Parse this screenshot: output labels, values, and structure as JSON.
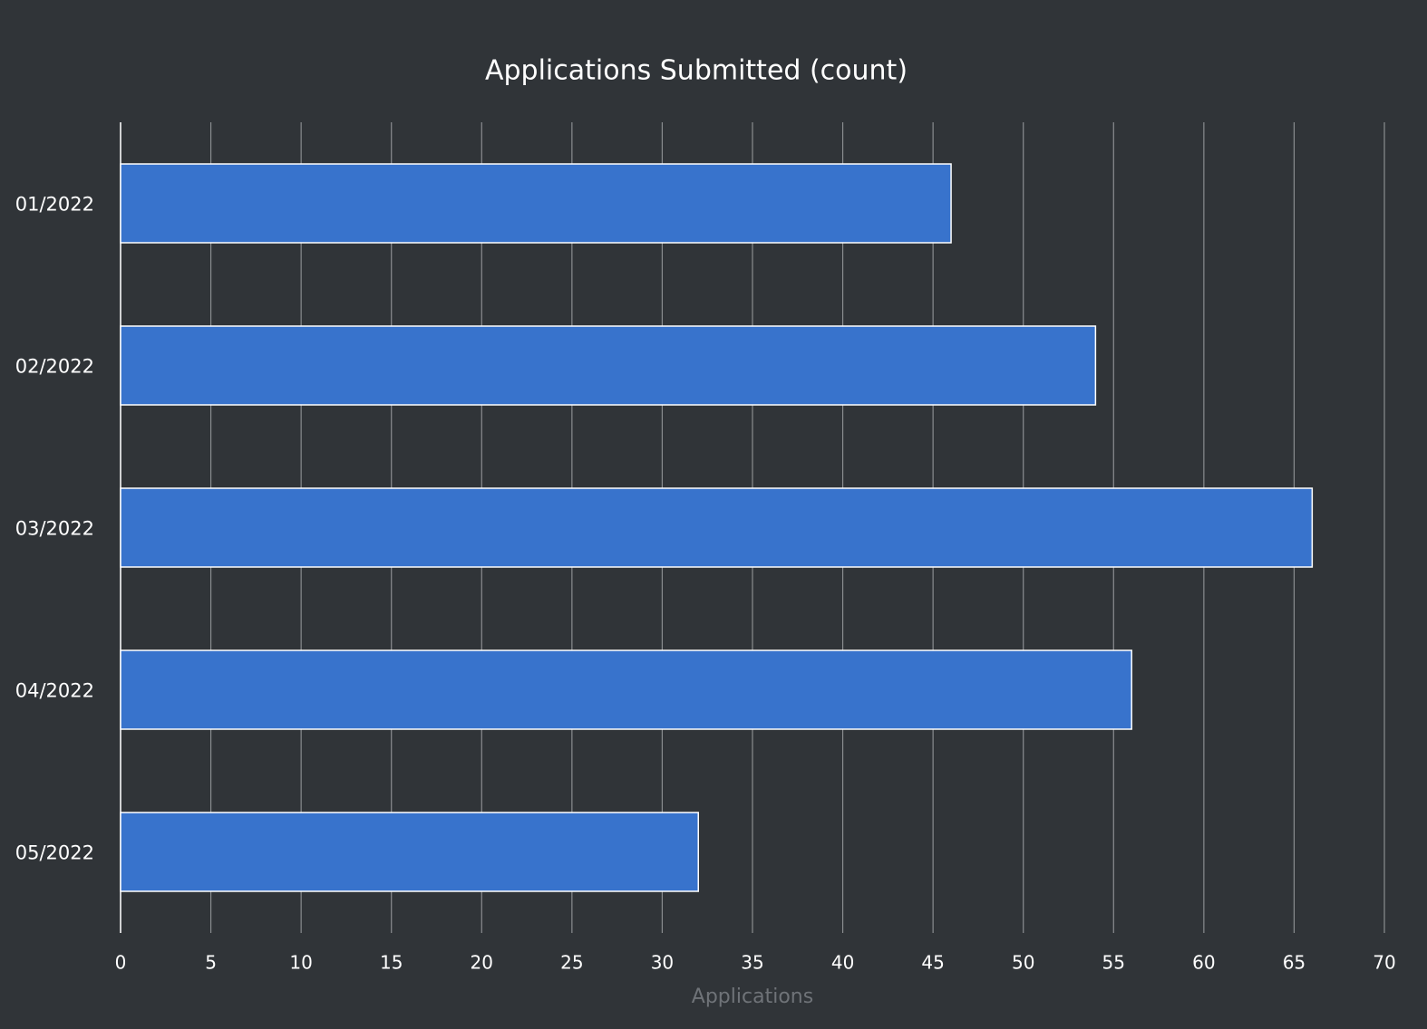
{
  "chart_data": {
    "type": "hbar",
    "title": "Applications Submitted (count)",
    "xlabel": "Applications",
    "categories": [
      "01/2022",
      "02/2022",
      "03/2022",
      "04/2022",
      "05/2022"
    ],
    "values": [
      46,
      54,
      66,
      56,
      32
    ],
    "color": "#3873cc",
    "xlim": [
      0,
      70
    ],
    "xticks": [
      0,
      5,
      10,
      15,
      20,
      25,
      30,
      35,
      40,
      45,
      50,
      55,
      60,
      65,
      70
    ],
    "grid": true
  }
}
